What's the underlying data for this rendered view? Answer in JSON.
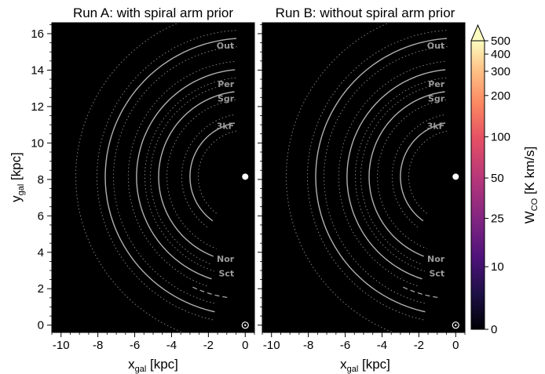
{
  "chart_data": [
    {
      "type": "heatmap",
      "title": "Run A: with spiral arm prior",
      "xlabel_main": "x",
      "xlabel_sub": "gal",
      "xlabel_unit": " [kpc]",
      "ylabel_main": "y",
      "ylabel_sub": "gal",
      "ylabel_unit": " [kpc]",
      "xlim": [
        -10.5,
        0.5
      ],
      "ylim": [
        -0.4,
        16.6
      ],
      "xticks": [
        -10,
        -8,
        -6,
        -4,
        -2,
        0
      ],
      "xtick_labels": [
        "-10",
        "-8",
        "-6",
        "-4",
        "-2",
        "0"
      ],
      "yticks": [
        0,
        2,
        4,
        6,
        8,
        10,
        12,
        14,
        16
      ],
      "ytick_labels": [
        "0",
        "2",
        "4",
        "6",
        "8",
        "10",
        "12",
        "14",
        "16"
      ],
      "arm_labels": [
        {
          "text": "Out",
          "x": -0.6,
          "y": 15.3
        },
        {
          "text": "Per",
          "x": -0.6,
          "y": 13.2
        },
        {
          "text": "Sgr",
          "x": -0.6,
          "y": 12.4
        },
        {
          "text": "3kF",
          "x": -0.6,
          "y": 10.9
        },
        {
          "text": "Nor",
          "x": -0.6,
          "y": 3.6
        },
        {
          "text": "Sct",
          "x": -0.6,
          "y": 2.8
        }
      ],
      "galactic_center": {
        "x": 0,
        "y": 8.15
      },
      "sun": {
        "x": 0,
        "y": 0
      }
    },
    {
      "type": "heatmap",
      "title": "Run B: without spiral arm prior",
      "xlabel_main": "x",
      "xlabel_sub": "gal",
      "xlabel_unit": " [kpc]",
      "xlim": [
        -10.5,
        0.5
      ],
      "ylim": [
        -0.4,
        16.6
      ],
      "xticks": [
        -10,
        -8,
        -6,
        -4,
        -2,
        0
      ],
      "xtick_labels": [
        "-10",
        "-8",
        "-6",
        "-4",
        "-2",
        "0"
      ],
      "arm_labels": [
        {
          "text": "Out",
          "x": -0.6,
          "y": 15.3
        },
        {
          "text": "Per",
          "x": -0.6,
          "y": 13.2
        },
        {
          "text": "Sgr",
          "x": -0.6,
          "y": 12.4
        },
        {
          "text": "3kF",
          "x": -0.6,
          "y": 10.9
        },
        {
          "text": "Nor",
          "x": -0.6,
          "y": 3.6
        },
        {
          "text": "Sct",
          "x": -0.6,
          "y": 2.8
        }
      ],
      "galactic_center": {
        "x": 0,
        "y": 8.15
      },
      "sun": {
        "x": 0,
        "y": 0
      }
    }
  ],
  "colorbar": {
    "label_main": "W",
    "label_sub": "CO",
    "label_unit": " [K km/s]",
    "ticks": [
      0,
      10,
      25,
      50,
      100,
      200,
      300,
      400,
      500
    ],
    "tick_labels": [
      "0",
      "10",
      "25",
      "50",
      "100",
      "200",
      "300",
      "400",
      "500"
    ],
    "extend": "max",
    "colormap": "magma",
    "colors": [
      "#000004",
      "#1c1044",
      "#4f127b",
      "#812581",
      "#b5367a",
      "#e55064",
      "#fb8761",
      "#fec287",
      "#fcfdbf"
    ]
  }
}
